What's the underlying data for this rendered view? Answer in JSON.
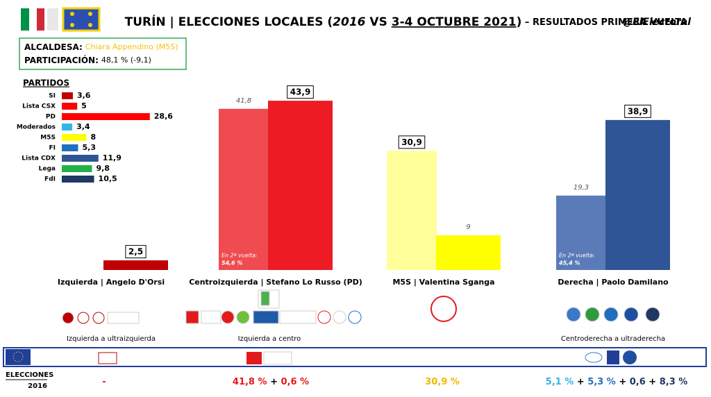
{
  "header": {
    "title_main": "TURÍN | ELECCIONES LOCALES (",
    "title_year": "2016",
    "title_vs": " VS ",
    "title_date": "3-4 OCTUBRE 2021",
    "title_close": ")",
    "title_sub": " – RESULTADOS PRIMERA VUELTA",
    "handle": "@ElElectoral"
  },
  "info": {
    "mayor_label": "ALCALDESA:",
    "mayor_value": "Chiara Appendino (M5S)",
    "turnout_label": "PARTICIPACIÓN:",
    "turnout_value": "48,1 % (-9,1)"
  },
  "chart_data": [
    {
      "type": "hbar",
      "title": "PARTIDOS",
      "categories": [
        "SI",
        "Lista CSX",
        "PD",
        "Moderados",
        "M5S",
        "FI",
        "Lista CDX",
        "Lega",
        "FdI"
      ],
      "values": [
        3.6,
        5,
        28.6,
        3.4,
        8,
        5.3,
        11.9,
        9.8,
        10.5
      ],
      "value_labels": [
        "3,6",
        "5",
        "28,6",
        "3,4",
        "8",
        "5,3",
        "11,9",
        "9,8",
        "10,5"
      ],
      "colors": [
        "#c00000",
        "#ff0000",
        "#ff0000",
        "#33b5e5",
        "#ffff00",
        "#1f6fc0",
        "#2f5597",
        "#22b04a",
        "#1f3864"
      ],
      "xlim": [
        0,
        30
      ]
    },
    {
      "type": "bar",
      "categories": [
        "Izquierda | Angelo D'Orsi",
        "Centroizquierda | Stefano Lo Russo (PD)",
        "M5S | Valentina Sganga",
        "Derecha | Paolo Damilano"
      ],
      "series": [
        {
          "values": [
            null,
            41.8,
            30.9,
            19.3
          ],
          "value_labels": [
            null,
            "41,8",
            "30,9",
            "19,3"
          ],
          "colors": [
            null,
            "#ef4b50",
            "#ffff99",
            "#5b7bb8"
          ]
        },
        {
          "values": [
            2.5,
            43.9,
            9,
            38.9
          ],
          "value_labels": [
            "2,5",
            "43,9",
            "9",
            "38,9"
          ],
          "colors": [
            "#c00000",
            "#ed1c24",
            "#ffff00",
            "#2f5597"
          ]
        }
      ],
      "annotations": [
        null,
        [
          "En 2ª vuelta:",
          "54,6 %"
        ],
        null,
        [
          "En 2ª vuelta:",
          "45,4 %"
        ]
      ],
      "groups": [
        "Izquierda a ultraizquierda",
        "Izquierda a centro",
        null,
        "Centroderecha a ultraderecha"
      ],
      "ylim": [
        0,
        45
      ]
    }
  ],
  "footer": {
    "label_1": "ELECCIONES",
    "label_2": "2016",
    "results": [
      [
        {
          "text": "-",
          "color": "#e31a1c"
        }
      ],
      [
        {
          "text": "41,8 %",
          "color": "#e31a1c"
        },
        {
          "text": " + ",
          "color": "#000000"
        },
        {
          "text": "0,6 %",
          "color": "#e31a1c"
        }
      ],
      [
        {
          "text": "30,9 %",
          "color": "#f2b800"
        }
      ],
      [
        {
          "text": "5,1 %",
          "color": "#33b5e5"
        },
        {
          "text": " + ",
          "color": "#000000"
        },
        {
          "text": "5,3 %",
          "color": "#1f6fc0"
        },
        {
          "text": " + ",
          "color": "#000000"
        },
        {
          "text": "0,6",
          "color": "#1f3864"
        },
        {
          "text": " + ",
          "color": "#000000"
        },
        {
          "text": "8,3 %",
          "color": "#1f3864"
        }
      ]
    ]
  }
}
